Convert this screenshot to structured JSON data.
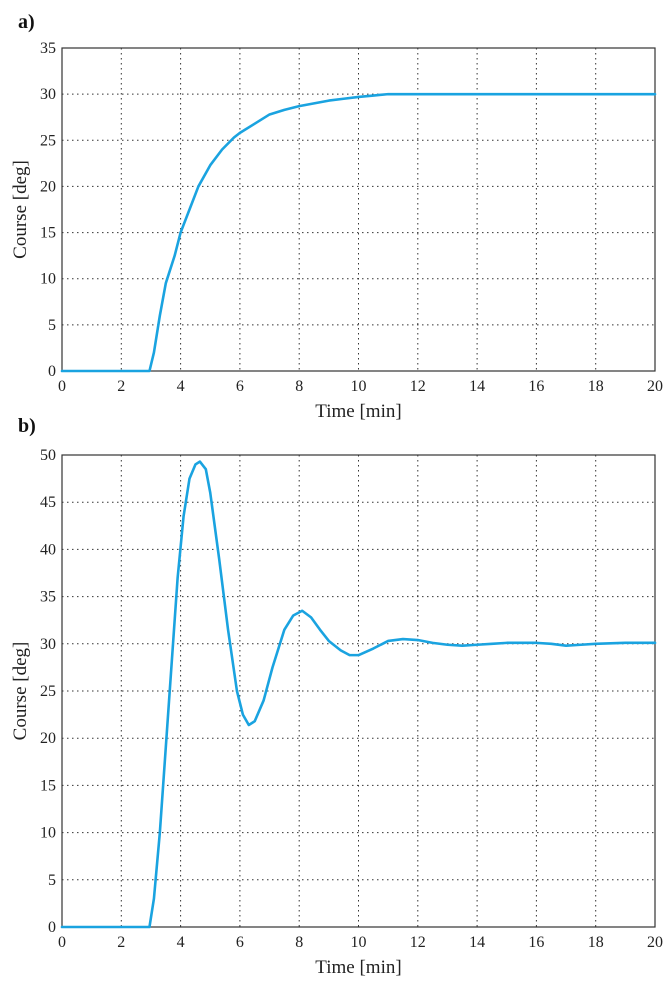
{
  "chart_data": [
    {
      "panel_label": "a)",
      "type": "line",
      "title": "",
      "xlabel": "Time [min]",
      "ylabel": "Course [deg]",
      "xlim": [
        0,
        20
      ],
      "ylim": [
        0,
        35
      ],
      "x_ticks": [
        0,
        2,
        4,
        6,
        8,
        10,
        12,
        14,
        16,
        18,
        20
      ],
      "y_ticks": [
        0,
        5,
        10,
        15,
        20,
        25,
        30,
        35
      ],
      "grid": true,
      "line_color": "#1aa3e0",
      "series": [
        {
          "x": [
            0,
            2.95,
            3.1,
            3.3,
            3.5,
            3.8,
            4.0,
            4.3,
            4.6,
            5.0,
            5.4,
            5.8,
            6.0,
            6.5,
            7.0,
            7.5,
            8.0,
            8.5,
            9.0,
            9.5,
            10.0,
            10.5,
            11.0,
            12,
            14,
            16,
            18,
            20
          ],
          "y": [
            0,
            0,
            2.0,
            6.0,
            9.5,
            12.5,
            15.0,
            17.5,
            20.0,
            22.3,
            24.0,
            25.3,
            25.8,
            26.8,
            27.8,
            28.3,
            28.7,
            29.0,
            29.3,
            29.5,
            29.7,
            29.85,
            30.0,
            30.0,
            30.0,
            30.0,
            30.0,
            30.0
          ]
        }
      ]
    },
    {
      "panel_label": "b)",
      "type": "line",
      "title": "",
      "xlabel": "Time [min]",
      "ylabel": "Course [deg]",
      "xlim": [
        0,
        20
      ],
      "ylim": [
        0,
        50
      ],
      "x_ticks": [
        0,
        2,
        4,
        6,
        8,
        10,
        12,
        14,
        16,
        18,
        20
      ],
      "y_ticks": [
        0,
        5,
        10,
        15,
        20,
        25,
        30,
        35,
        40,
        45,
        50
      ],
      "grid": true,
      "line_color": "#1aa3e0",
      "series": [
        {
          "x": [
            0,
            2.95,
            3.1,
            3.3,
            3.5,
            3.7,
            3.9,
            4.1,
            4.3,
            4.5,
            4.65,
            4.85,
            5.0,
            5.3,
            5.6,
            5.9,
            6.1,
            6.3,
            6.5,
            6.8,
            7.1,
            7.5,
            7.8,
            8.1,
            8.4,
            8.7,
            9.0,
            9.4,
            9.7,
            10.0,
            10.5,
            11.0,
            11.5,
            12.0,
            12.5,
            13.0,
            13.5,
            14.0,
            14.5,
            15.0,
            15.5,
            16.0,
            16.5,
            17.0,
            17.5,
            18.0,
            19.0,
            20.0
          ],
          "y": [
            0,
            0,
            3.0,
            10.0,
            19.0,
            28.0,
            37.0,
            43.5,
            47.5,
            49.0,
            49.3,
            48.5,
            46.0,
            39.0,
            31.5,
            25.0,
            22.5,
            21.4,
            21.8,
            24.0,
            27.5,
            31.5,
            33.0,
            33.5,
            32.8,
            31.5,
            30.3,
            29.3,
            28.8,
            28.8,
            29.5,
            30.3,
            30.5,
            30.4,
            30.1,
            29.9,
            29.8,
            29.9,
            30.0,
            30.1,
            30.1,
            30.1,
            30.0,
            29.8,
            29.9,
            30.0,
            30.1,
            30.1
          ]
        }
      ]
    }
  ]
}
